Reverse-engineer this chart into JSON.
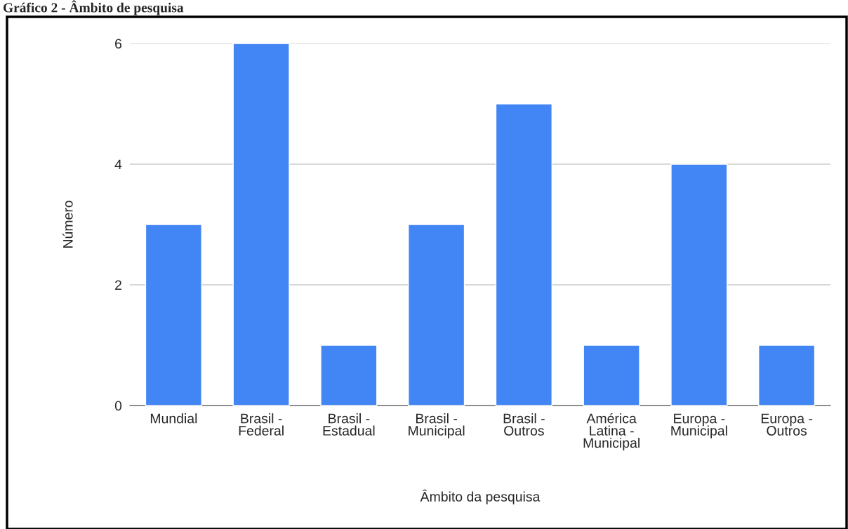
{
  "chart_data": {
    "type": "bar",
    "title": "Gráfico 2 - Âmbito de pesquisa",
    "categories": [
      "Mundial",
      "Brasil -\nFederal",
      "Brasil -\nEstadual",
      "Brasil -\nMunicipal",
      "Brasil -\nOutros",
      "América\nLatina -\nMunicipal",
      "Europa -\nMunicipal",
      "Europa -\nOutros"
    ],
    "values": [
      3,
      6,
      1,
      3,
      5,
      1,
      4,
      1
    ],
    "color": "#4285f4",
    "xlabel": "Âmbito da pesquisa",
    "ylabel": "Número",
    "ylim": [
      0,
      6
    ],
    "yticks": [
      0,
      2,
      4,
      6
    ],
    "grid": "y"
  }
}
